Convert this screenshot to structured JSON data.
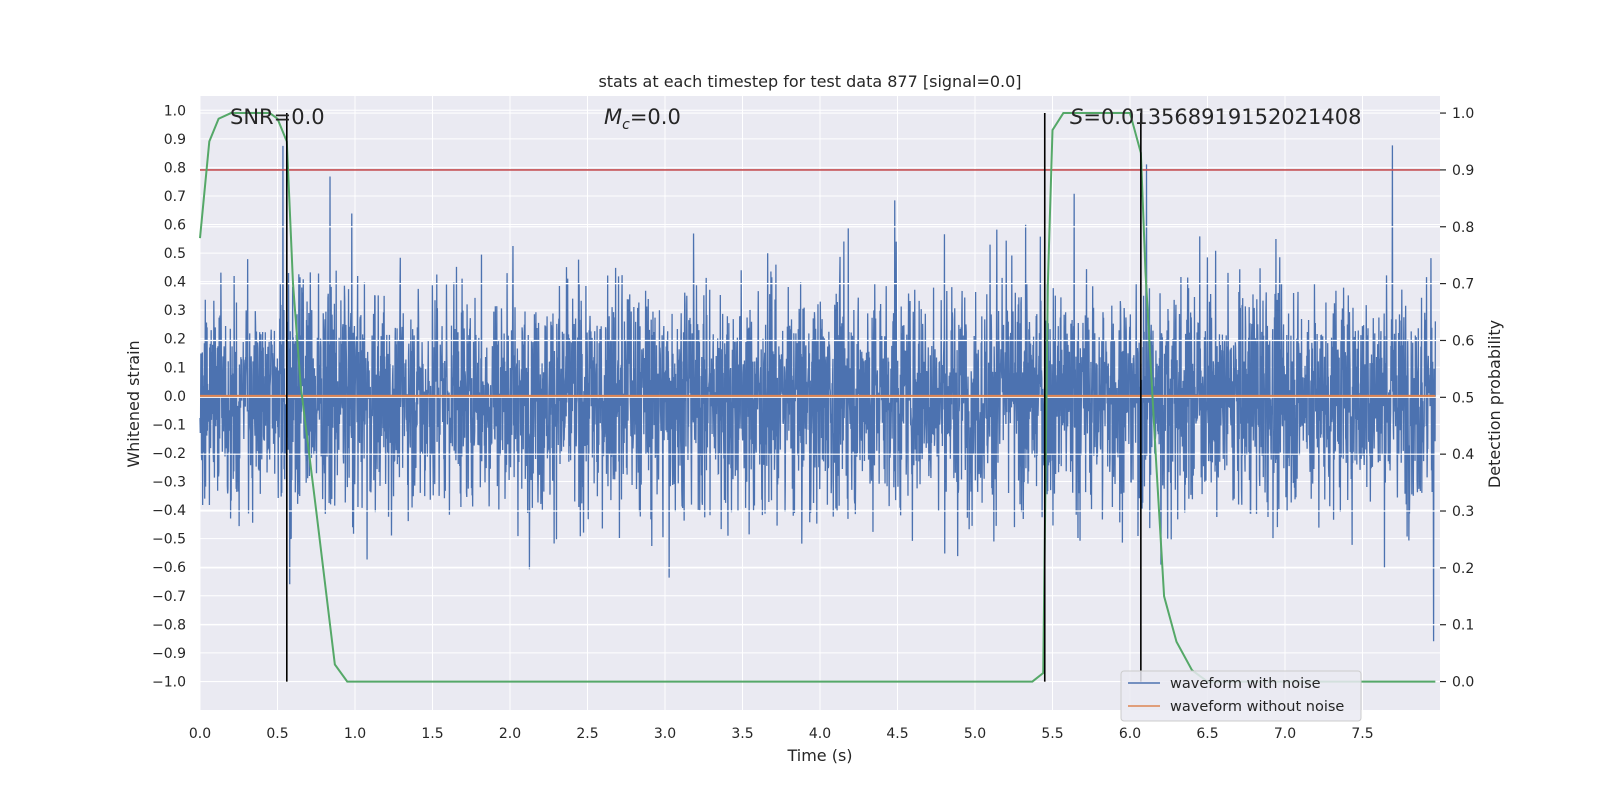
{
  "chart_data": {
    "type": "line",
    "title": "stats at each timestep for test data 877 [signal=0.0]",
    "xlabel": "Time (s)",
    "ylabel_left": "Whitened strain",
    "ylabel_right": "Detection probability",
    "xlim": [
      0.0,
      8.0
    ],
    "ylim_left": [
      -1.1,
      1.05
    ],
    "ylim_right": [
      -0.05,
      1.03
    ],
    "x_ticks": [
      0.0,
      0.5,
      1.0,
      1.5,
      2.0,
      2.5,
      3.0,
      3.5,
      4.0,
      4.5,
      5.0,
      5.5,
      6.0,
      6.5,
      7.0,
      7.5
    ],
    "x_tick_labels": [
      "0.0",
      "0.5",
      "1.0",
      "1.5",
      "2.0",
      "2.5",
      "3.0",
      "3.5",
      "4.0",
      "4.5",
      "5.0",
      "5.5",
      "6.0",
      "6.5",
      "7.0",
      "7.5"
    ],
    "y_left_ticks": [
      1.0,
      0.9,
      0.8,
      0.7,
      0.6,
      0.5,
      0.4,
      0.3,
      0.2,
      0.1,
      0.0,
      -0.1,
      -0.2,
      -0.3,
      -0.4,
      -0.5,
      -0.6,
      -0.7,
      -0.8,
      -0.9,
      -1.0
    ],
    "y_left_tick_labels": [
      "1.0",
      "0.9",
      "0.8",
      "0.7",
      "0.6",
      "0.5",
      "0.4",
      "0.3",
      "0.2",
      "0.1",
      "0.0",
      "−0.1",
      "−0.2",
      "−0.3",
      "−0.4",
      "−0.5",
      "−0.6",
      "−0.7",
      "−0.8",
      "−0.9",
      "−1.0"
    ],
    "y_right_ticks": [
      1.0,
      0.9,
      0.8,
      0.7,
      0.6,
      0.5,
      0.4,
      0.3,
      0.2,
      0.1,
      0.0
    ],
    "y_right_tick_labels": [
      "1.0",
      "0.9",
      "0.8",
      "0.7",
      "0.6",
      "0.5",
      "0.4",
      "0.3",
      "0.2",
      "0.1",
      "0.0"
    ],
    "grid": true,
    "legend_position": "lower-right",
    "annotations": {
      "snr": "SNR=0.0",
      "mc": "M_c=0.0",
      "s": "S=0.013568919152021408"
    },
    "series": [
      {
        "name": "waveform with noise",
        "color": "#4c72b0",
        "axis": "left",
        "description": "dense whitened noise spanning roughly -1.0 to 0.95"
      },
      {
        "name": "waveform without noise",
        "color": "#dd8452",
        "axis": "left",
        "y_constant": 0.0
      },
      {
        "axis": "right",
        "color": "#55a868",
        "x": [
          0.0,
          0.06,
          0.12,
          0.2,
          0.3,
          0.45,
          0.5,
          0.56,
          0.6,
          0.65,
          0.75,
          0.87,
          0.95,
          1.0,
          2.0,
          3.0,
          4.0,
          5.0,
          5.37,
          5.44,
          5.47,
          5.5,
          5.57,
          5.7,
          5.9,
          6.0,
          6.07,
          6.1,
          6.17,
          6.22,
          6.3,
          6.4,
          6.5,
          7.0,
          7.5,
          7.97
        ],
        "y": [
          0.78,
          0.95,
          0.99,
          1.0,
          1.0,
          1.0,
          0.99,
          0.95,
          0.7,
          0.52,
          0.3,
          0.03,
          0.0,
          0.0,
          0.0,
          0.0,
          0.0,
          0.0,
          0.0,
          0.015,
          0.7,
          0.97,
          1.0,
          1.0,
          1.0,
          1.0,
          0.93,
          0.72,
          0.38,
          0.15,
          0.07,
          0.02,
          0.0,
          0.0,
          0.0,
          0.0
        ]
      }
    ],
    "reference_lines": {
      "threshold_prob": 0.9,
      "threshold_color": "#c44e52",
      "vertical_times": [
        0.56,
        5.45,
        6.07
      ]
    }
  }
}
